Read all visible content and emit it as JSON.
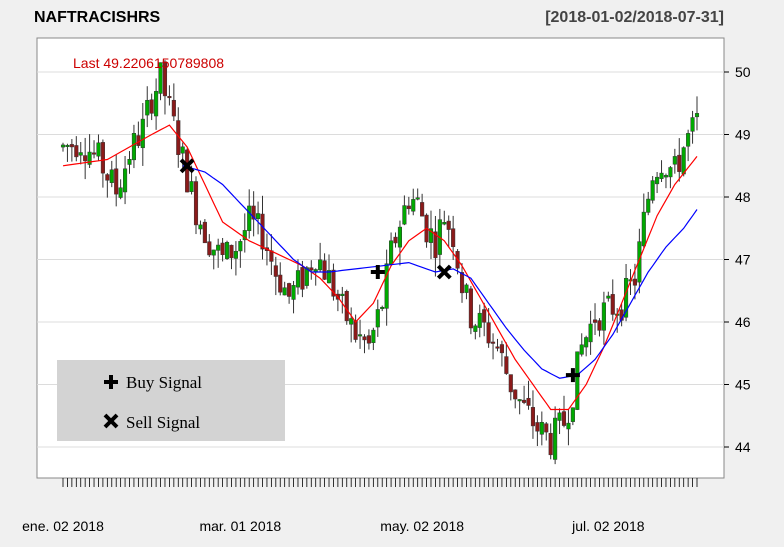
{
  "chart_data": {
    "type": "candlestick",
    "title": "NAFTRACISHRS",
    "date_range": "[2018-01-02/2018-07-31]",
    "last_label": "Last 49.2206150789808",
    "y_ticks": [
      "44",
      "45",
      "46",
      "47",
      "48",
      "49",
      "50"
    ],
    "ylim": [
      43.8,
      50.4
    ],
    "x_labels": [
      {
        "label": "ene. 02 2018",
        "index": 0
      },
      {
        "label": "mar. 01 2018",
        "index": 40
      },
      {
        "label": "may. 02 2018",
        "index": 81
      },
      {
        "label": "jul. 02 2018",
        "index": 123
      }
    ],
    "n_days": 144,
    "ohlc_anchors": [
      [
        0,
        48.8
      ],
      [
        4,
        48.9
      ],
      [
        8,
        48.6
      ],
      [
        12,
        48.1
      ],
      [
        15,
        48.7
      ],
      [
        18,
        49.1
      ],
      [
        20,
        49.6
      ],
      [
        22,
        49.9
      ],
      [
        24,
        49.4
      ],
      [
        27,
        48.6
      ],
      [
        30,
        47.8
      ],
      [
        33,
        47.3
      ],
      [
        36,
        47.0
      ],
      [
        39,
        47.2
      ],
      [
        42,
        47.6
      ],
      [
        45,
        47.4
      ],
      [
        48,
        46.8
      ],
      [
        51,
        46.4
      ],
      [
        54,
        46.7
      ],
      [
        57,
        47.1
      ],
      [
        60,
        46.7
      ],
      [
        63,
        46.2
      ],
      [
        66,
        45.8
      ],
      [
        69,
        45.6
      ],
      [
        72,
        46.3
      ],
      [
        74,
        47.1
      ],
      [
        76,
        47.6
      ],
      [
        78,
        48.0
      ],
      [
        80,
        47.9
      ],
      [
        82,
        47.5
      ],
      [
        84,
        47.3
      ],
      [
        86,
        47.7
      ],
      [
        88,
        47.4
      ],
      [
        90,
        46.6
      ],
      [
        92,
        46.1
      ],
      [
        95,
        45.9
      ],
      [
        98,
        45.6
      ],
      [
        101,
        45.0
      ],
      [
        104,
        44.6
      ],
      [
        107,
        44.3
      ],
      [
        110,
        44.1
      ],
      [
        113,
        44.4
      ],
      [
        115,
        44.9
      ],
      [
        117,
        45.6
      ],
      [
        120,
        46.1
      ],
      [
        123,
        46.2
      ],
      [
        126,
        46.3
      ],
      [
        129,
        46.7
      ],
      [
        131,
        47.6
      ],
      [
        133,
        48.4
      ],
      [
        135,
        48.6
      ],
      [
        138,
        48.4
      ],
      [
        140,
        48.8
      ],
      [
        143,
        49.2
      ]
    ],
    "series": [
      {
        "name": "red",
        "color": "#ff0000",
        "anchors": [
          [
            0,
            48.5
          ],
          [
            10,
            48.6
          ],
          [
            20,
            49.0
          ],
          [
            24,
            49.15
          ],
          [
            28,
            48.8
          ],
          [
            32,
            48.2
          ],
          [
            36,
            47.6
          ],
          [
            42,
            47.3
          ],
          [
            48,
            47.1
          ],
          [
            54,
            46.9
          ],
          [
            58,
            46.7
          ],
          [
            62,
            46.4
          ],
          [
            66,
            46.0
          ],
          [
            70,
            46.3
          ],
          [
            74,
            46.9
          ],
          [
            78,
            47.3
          ],
          [
            82,
            47.5
          ],
          [
            86,
            47.3
          ],
          [
            90,
            46.9
          ],
          [
            94,
            46.4
          ],
          [
            98,
            45.9
          ],
          [
            102,
            45.4
          ],
          [
            106,
            45.0
          ],
          [
            110,
            44.6
          ],
          [
            114,
            44.6
          ],
          [
            118,
            45.0
          ],
          [
            122,
            45.6
          ],
          [
            126,
            46.3
          ],
          [
            130,
            47.0
          ],
          [
            134,
            47.7
          ],
          [
            138,
            48.2
          ],
          [
            143,
            48.65
          ]
        ]
      },
      {
        "name": "blue",
        "color": "#0000ff",
        "anchors": [
          [
            27,
            48.5
          ],
          [
            32,
            48.4
          ],
          [
            36,
            48.2
          ],
          [
            40,
            47.9
          ],
          [
            44,
            47.6
          ],
          [
            48,
            47.3
          ],
          [
            52,
            47.0
          ],
          [
            56,
            46.8
          ],
          [
            60,
            46.8
          ],
          [
            66,
            46.85
          ],
          [
            72,
            46.9
          ],
          [
            78,
            46.95
          ],
          [
            84,
            46.8
          ],
          [
            88,
            46.85
          ],
          [
            92,
            46.7
          ],
          [
            96,
            46.3
          ],
          [
            100,
            45.9
          ],
          [
            104,
            45.55
          ],
          [
            108,
            45.25
          ],
          [
            112,
            45.1
          ],
          [
            116,
            45.15
          ],
          [
            120,
            45.4
          ],
          [
            124,
            45.8
          ],
          [
            128,
            46.3
          ],
          [
            132,
            46.8
          ],
          [
            136,
            47.2
          ],
          [
            140,
            47.5
          ],
          [
            143,
            47.8
          ]
        ]
      }
    ],
    "signals": [
      {
        "type": "sell",
        "index": 28,
        "value": 48.5
      },
      {
        "type": "buy",
        "index": 71,
        "value": 46.8
      },
      {
        "type": "sell",
        "index": 86,
        "value": 46.8
      },
      {
        "type": "buy",
        "index": 115,
        "value": 45.15
      }
    ],
    "legend": {
      "buy": "Buy Signal",
      "sell": "Sell Signal"
    },
    "colors": {
      "up": "#00aa00",
      "down": "#8b1a1a",
      "grid": "#dcdcdc",
      "panel_bg": "#ffffff",
      "page_bg": "#f0f0f0"
    }
  }
}
